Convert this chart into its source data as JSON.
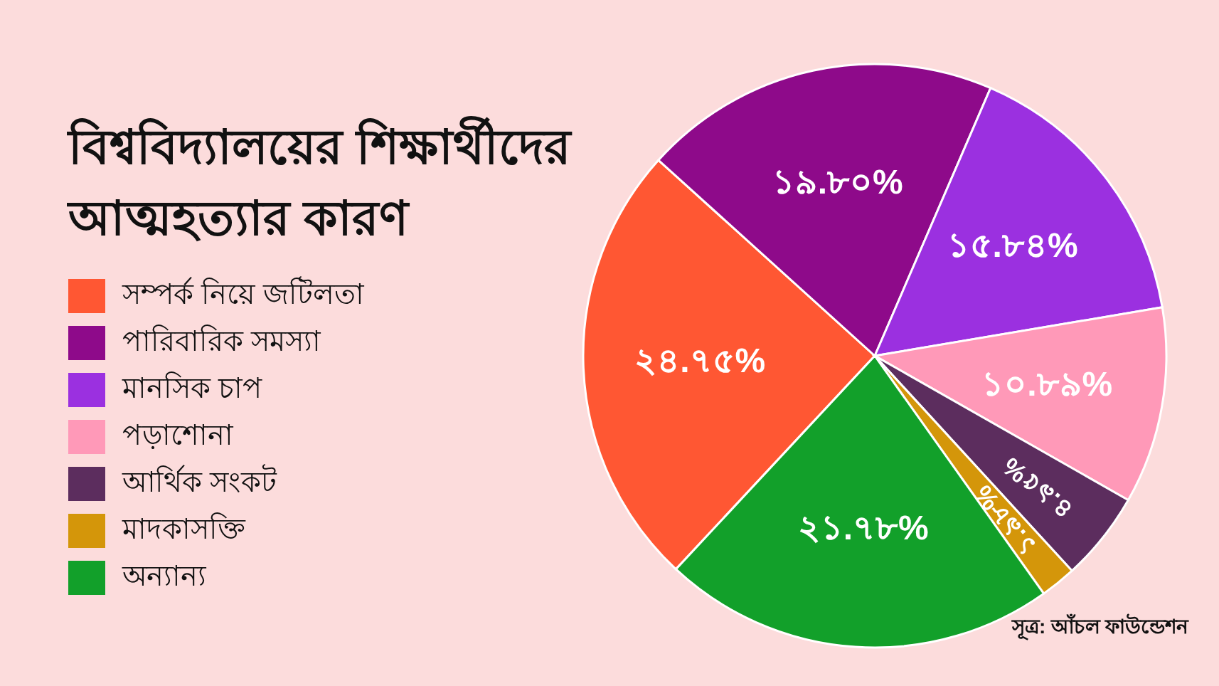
{
  "chart_data": {
    "type": "pie",
    "title": "বিশ্ববিদ্যালয়ের শিক্ষার্থীদের আত্মহত্যার কারণ",
    "categories": [
      "সম্পর্ক নিয়ে জটিলতা",
      "পারিবারিক সমস্যা",
      "মানসিক চাপ",
      "পড়াশোনা",
      "আর্থিক সংকট",
      "মাদকাসক্তি",
      "অন্যান্য"
    ],
    "values": [
      24.75,
      19.8,
      15.84,
      10.89,
      4.95,
      1.98,
      21.78
    ],
    "value_labels": [
      "২৪.৭৫%",
      "১৯.৮০%",
      "১৫.৮৪%",
      "১০.৮৯%",
      "৪.৯৫%",
      "১.৯৮%",
      "২১.৭৮%"
    ],
    "colors": [
      "#ff5733",
      "#8e0a8a",
      "#9b30e0",
      "#ff99b8",
      "#5c2d5e",
      "#d4960a",
      "#12a02a"
    ],
    "legend": "left",
    "annotations": [
      "সূত্র: আঁচল ফাউন্ডেশন"
    ]
  }
}
